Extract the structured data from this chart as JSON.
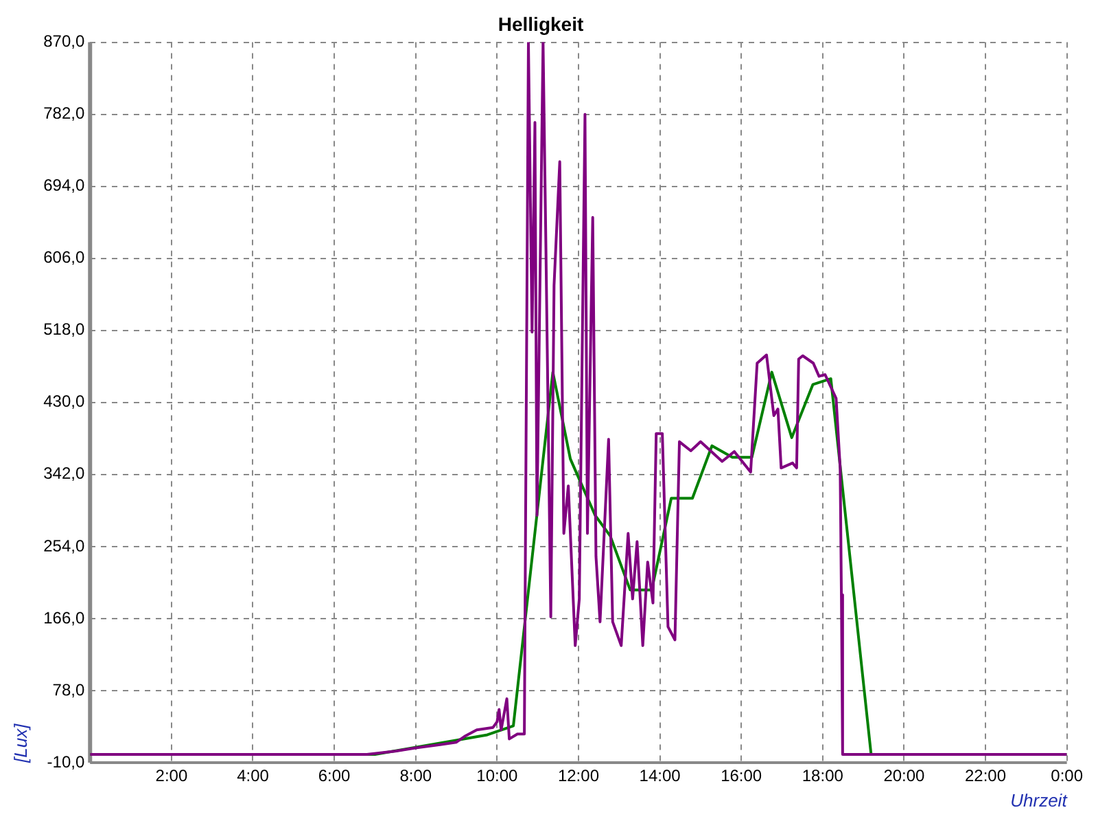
{
  "chart_data": {
    "type": "line",
    "title": "Helligkeit",
    "xlabel": "Uhrzeit",
    "ylabel": "[Lux]",
    "xlim": [
      0,
      24
    ],
    "xticks": [
      {
        "value": 2,
        "label": "2:00"
      },
      {
        "value": 4,
        "label": "4:00"
      },
      {
        "value": 6,
        "label": "6:00"
      },
      {
        "value": 8,
        "label": "8:00"
      },
      {
        "value": 10,
        "label": "10:00"
      },
      {
        "value": 12,
        "label": "12:00"
      },
      {
        "value": 14,
        "label": "14:00"
      },
      {
        "value": 16,
        "label": "16:00"
      },
      {
        "value": 18,
        "label": "18:00"
      },
      {
        "value": 20,
        "label": "20:00"
      },
      {
        "value": 22,
        "label": "22:00"
      },
      {
        "value": 24,
        "label": "0:00"
      }
    ],
    "ylim": [
      -10,
      870
    ],
    "yticks": [
      {
        "value": -10,
        "label": "-10,0"
      },
      {
        "value": 78,
        "label": "78,0"
      },
      {
        "value": 166,
        "label": "166,0"
      },
      {
        "value": 254,
        "label": "254,0"
      },
      {
        "value": 342,
        "label": "342,0"
      },
      {
        "value": 430,
        "label": "430,0"
      },
      {
        "value": 518,
        "label": "518,0"
      },
      {
        "value": 606,
        "label": "606,0"
      },
      {
        "value": 694,
        "label": "694,0"
      },
      {
        "value": 782,
        "label": "782,0"
      },
      {
        "value": 870,
        "label": "870,0"
      }
    ],
    "grid": true,
    "marker": "none",
    "line_style": "solid",
    "series": [
      {
        "color": "#800080",
        "x": [
          0,
          6.8,
          7.5,
          8.0,
          8.6,
          9.0,
          9.2,
          9.5,
          9.9,
          10.0,
          10.05,
          10.1,
          10.24,
          10.3,
          10.5,
          10.67,
          10.77,
          10.86,
          10.93,
          10.98,
          11.13,
          11.2,
          11.32,
          11.4,
          11.54,
          11.64,
          11.75,
          11.92,
          12.02,
          12.16,
          12.22,
          12.35,
          12.43,
          12.53,
          12.74,
          12.84,
          13.05,
          13.22,
          13.33,
          13.44,
          13.58,
          13.7,
          13.83,
          13.91,
          14.06,
          14.2,
          14.37,
          14.48,
          14.51,
          14.76,
          15.0,
          15.53,
          15.83,
          16.23,
          16.39,
          16.62,
          16.8,
          16.9,
          16.98,
          17.26,
          17.36,
          17.41,
          17.51,
          17.77,
          17.91,
          18.06,
          18.33,
          18.43,
          18.46,
          18.49,
          24
        ],
        "values": [
          0,
          0,
          4,
          8,
          12,
          15,
          22,
          30,
          33,
          40,
          55,
          30,
          68,
          19,
          25,
          25,
          870,
          516,
          772,
          292,
          870,
          619,
          168,
          573,
          724,
          270,
          328,
          133,
          190,
          782,
          270,
          656,
          242,
          162,
          385,
          162,
          133,
          270,
          190,
          260,
          133,
          235,
          185,
          392,
          392,
          156,
          140,
          382,
          382,
          371,
          382,
          358,
          370,
          345,
          478,
          488,
          414,
          422,
          350,
          356,
          350,
          483,
          487,
          478,
          462,
          464,
          435,
          350,
          195,
          0,
          0
        ]
      },
      {
        "color": "#008000",
        "x": [
          0,
          7.0,
          9.76,
          10.4,
          11.37,
          11.8,
          12.41,
          12.78,
          13.27,
          13.8,
          14.28,
          14.8,
          15.28,
          15.78,
          16.26,
          16.75,
          17.24,
          17.76,
          18.2,
          19.19,
          24
        ],
        "values": [
          0,
          0,
          24,
          35,
          467,
          361,
          292,
          267,
          201,
          201,
          313,
          313,
          377,
          363,
          363,
          467,
          387,
          452,
          459,
          0,
          0
        ]
      }
    ]
  }
}
